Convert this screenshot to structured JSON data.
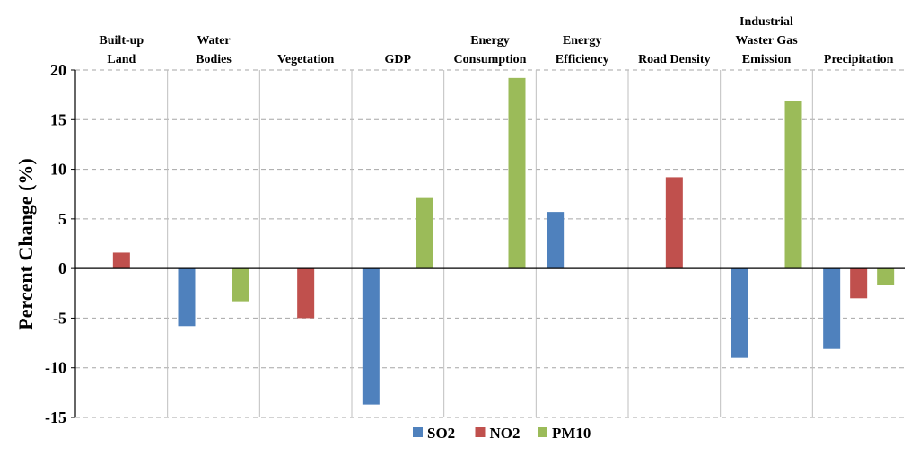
{
  "chart_data": {
    "type": "bar",
    "title": "",
    "xlabel": "",
    "ylabel": "Percent Change (%)",
    "ylim": [
      -15,
      20
    ],
    "yticks": [
      -15,
      -10,
      -5,
      0,
      5,
      10,
      15,
      20
    ],
    "grid": true,
    "legend_position": "bottom",
    "categories": [
      [
        "Built-up",
        "Land"
      ],
      [
        "Water",
        "Bodies"
      ],
      [
        "Vegetation"
      ],
      [
        "GDP"
      ],
      [
        "Energy",
        "Consumption"
      ],
      [
        "Energy",
        "Efficiency"
      ],
      [
        "Road Density"
      ],
      [
        "Industrial",
        "Waster Gas",
        "Emission"
      ],
      [
        "Precipitation"
      ]
    ],
    "series": [
      {
        "name": "SO2",
        "color": "#4F81BD",
        "values": [
          0,
          -5.8,
          0,
          -13.7,
          0,
          5.7,
          0,
          -9.0,
          -8.1
        ]
      },
      {
        "name": "NO2",
        "color": "#C0504D",
        "values": [
          1.6,
          0,
          -5.0,
          0,
          0,
          0,
          9.2,
          0,
          -3.0
        ]
      },
      {
        "name": "PM10",
        "color": "#9BBB59",
        "values": [
          0,
          -3.3,
          0,
          7.1,
          19.2,
          0,
          0,
          16.9,
          -1.7
        ]
      }
    ]
  }
}
